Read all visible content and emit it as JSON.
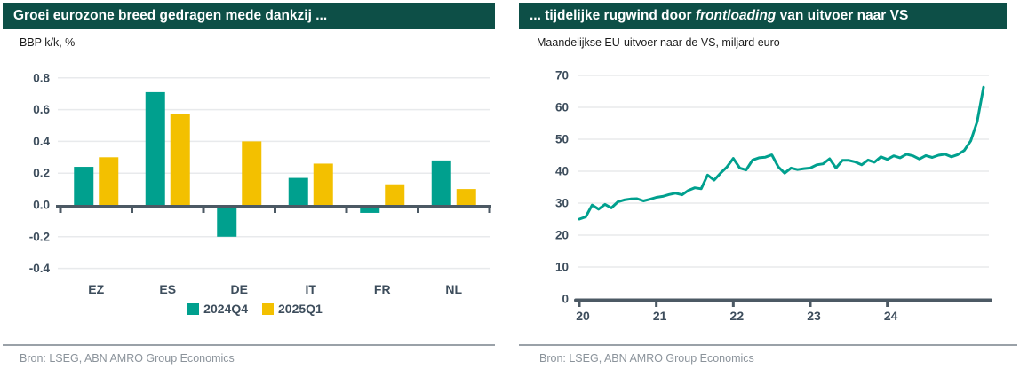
{
  "colors": {
    "header_bg": "#0d4f47",
    "header_text": "#ffffff",
    "teal": "#00a08e",
    "yellow": "#f3c000",
    "axis": "#4c5964",
    "grid": "#e8eaec",
    "tick_text": "#3d4d5c",
    "subtitle_text": "#1c1c1c",
    "source_text": "#8b939b",
    "divider": "#9aa1a8"
  },
  "left_panel": {
    "title": "Groei eurozone breed gedragen mede dankzij ...",
    "subtitle": "BBP k/k, %",
    "source": "Bron: LSEG, ABN AMRO Group Economics"
  },
  "right_panel": {
    "title_parts": [
      {
        "text": "... tijdelijke rugwind door ",
        "italic": false
      },
      {
        "text": "frontloading",
        "italic": true
      },
      {
        "text": " van uitvoer naar VS",
        "italic": false
      }
    ],
    "subtitle": "Maandelijkse EU-uitvoer naar de VS, miljard euro",
    "source": "Bron: LSEG, ABN AMRO Group Economics"
  },
  "chart_data": [
    {
      "type": "bar",
      "title": "Groei eurozone breed gedragen mede dankzij ...",
      "ylabel": "BBP k/k, %",
      "categories": [
        "EZ",
        "ES",
        "DE",
        "IT",
        "FR",
        "NL"
      ],
      "series": [
        {
          "name": "2024Q4",
          "color": "#00a08e",
          "values": [
            0.24,
            0.71,
            -0.2,
            0.17,
            -0.05,
            0.28
          ]
        },
        {
          "name": "2025Q1",
          "color": "#f3c000",
          "values": [
            0.3,
            0.57,
            0.4,
            0.26,
            0.13,
            0.1
          ]
        }
      ],
      "ylim": [
        -0.4,
        0.8
      ],
      "yticks": [
        0.8,
        0.6,
        0.4,
        0.2,
        0.0,
        -0.2,
        -0.4
      ],
      "grid": true,
      "legend_position": "bottom"
    },
    {
      "type": "line",
      "title": "... tijdelijke rugwind door frontloading van uitvoer naar VS",
      "ylabel": "Maandelijkse EU-uitvoer naar de VS, miljard euro",
      "x_monthly_start": "2020-01",
      "x_monthly_end": "2025-04",
      "xticks": [
        "20",
        "21",
        "22",
        "23",
        "24"
      ],
      "xtick_month_indices": [
        0,
        12,
        24,
        36,
        48
      ],
      "ylim": [
        0,
        70
      ],
      "yticks": [
        0,
        10,
        20,
        30,
        40,
        50,
        60,
        70
      ],
      "grid": true,
      "series": [
        {
          "name": "EU-uitvoer naar de VS",
          "color": "#00a08e",
          "values": [
            25.0,
            25.7,
            29.4,
            28.1,
            29.6,
            28.5,
            30.4,
            31.0,
            31.3,
            31.4,
            30.7,
            31.2,
            31.8,
            32.1,
            32.7,
            33.1,
            32.6,
            34.0,
            34.8,
            34.5,
            38.8,
            37.2,
            39.4,
            41.3,
            44.0,
            41.0,
            40.4,
            43.5,
            44.2,
            44.4,
            45.1,
            41.4,
            39.4,
            41.0,
            40.5,
            40.8,
            41.0,
            42.0,
            42.3,
            43.9,
            41.0,
            43.4,
            43.4,
            42.9,
            42.0,
            43.5,
            42.8,
            44.5,
            43.7,
            44.8,
            44.2,
            45.3,
            44.8,
            43.8,
            44.9,
            44.3,
            45.0,
            45.3,
            44.5,
            45.2,
            46.5,
            49.5,
            55.5,
            66.3
          ]
        }
      ]
    }
  ]
}
